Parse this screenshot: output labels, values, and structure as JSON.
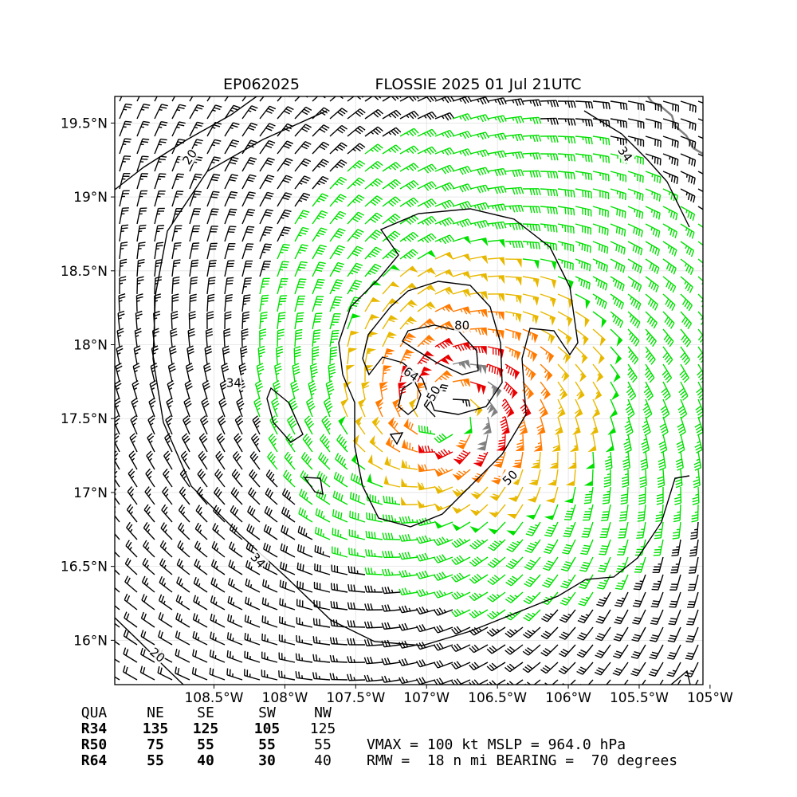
{
  "chart_data": {
    "type": "wind-barb-map",
    "title_left": "EP062025",
    "title_right": "FLOSSIE 2025 01 Jul 21UTC",
    "xlim": [
      -109.2,
      -105.05
    ],
    "ylim": [
      15.7,
      19.68
    ],
    "x_ticks": [
      -108.5,
      -108.0,
      -107.5,
      -107.0,
      -106.5,
      -106.0,
      -105.5,
      -105.0
    ],
    "x_tick_labels": [
      "108.5°W",
      "108°W",
      "107.5°W",
      "107°W",
      "106.5°W",
      "106°W",
      "105.5°W",
      "105°W"
    ],
    "y_ticks": [
      16.0,
      16.5,
      17.0,
      17.5,
      18.0,
      18.5,
      19.0,
      19.5
    ],
    "y_tick_labels": [
      "16°N",
      "16.5°N",
      "17°N",
      "17.5°N",
      "18°N",
      "18.5°N",
      "19°N",
      "19.5°N"
    ],
    "grid": true,
    "storm_center": {
      "lon": -106.85,
      "lat": 17.55
    },
    "rmw_nmi": 18,
    "vmax_kt": 100,
    "contour_levels": [
      20,
      34,
      50,
      64,
      80
    ],
    "contour_labels": [
      {
        "text": "20",
        "lon": -108.67,
        "lat": 19.27,
        "rot": -55
      },
      {
        "text": "34",
        "lon": -108.36,
        "lat": 17.74,
        "rot": 0
      },
      {
        "text": "34",
        "lon": -108.19,
        "lat": 16.54,
        "rot": 48
      },
      {
        "text": "34",
        "lon": -105.6,
        "lat": 19.29,
        "rot": 55
      },
      {
        "text": "20",
        "lon": -108.9,
        "lat": 15.9,
        "rot": 40
      },
      {
        "text": "50",
        "lon": -106.95,
        "lat": 17.67,
        "rot": -60
      },
      {
        "text": "50",
        "lon": -106.41,
        "lat": 17.1,
        "rot": -45
      },
      {
        "text": "64",
        "lon": -107.11,
        "lat": 17.8,
        "rot": 35
      },
      {
        "text": "80",
        "lon": -106.75,
        "lat": 18.13,
        "rot": 0
      }
    ],
    "wind_radii": {
      "headers": [
        "QUA",
        "NE",
        "SE",
        "SW",
        "NW"
      ],
      "rows": [
        {
          "label": "R34",
          "values": [
            "135",
            "125",
            "105",
            "125"
          ]
        },
        {
          "label": "R50",
          "values": [
            "75",
            "55",
            "55",
            "55"
          ]
        },
        {
          "label": "R64",
          "values": [
            "55",
            "40",
            "30",
            "40"
          ]
        }
      ]
    },
    "summary_line1": "VMAX = 100 kt MSLP = 964.0 hPa",
    "summary_line2": "RMW =  18 n mi BEARING =  70 degrees",
    "colors": {
      "below_34": "#000000",
      "34_to_50": "#00e000",
      "50_to_64": "#e8b800",
      "64_to_80": "#ff7a00",
      "80_plus": "#e80000",
      "100_plus": "#808080",
      "contour": "#000000",
      "coastline": "#808080"
    }
  }
}
